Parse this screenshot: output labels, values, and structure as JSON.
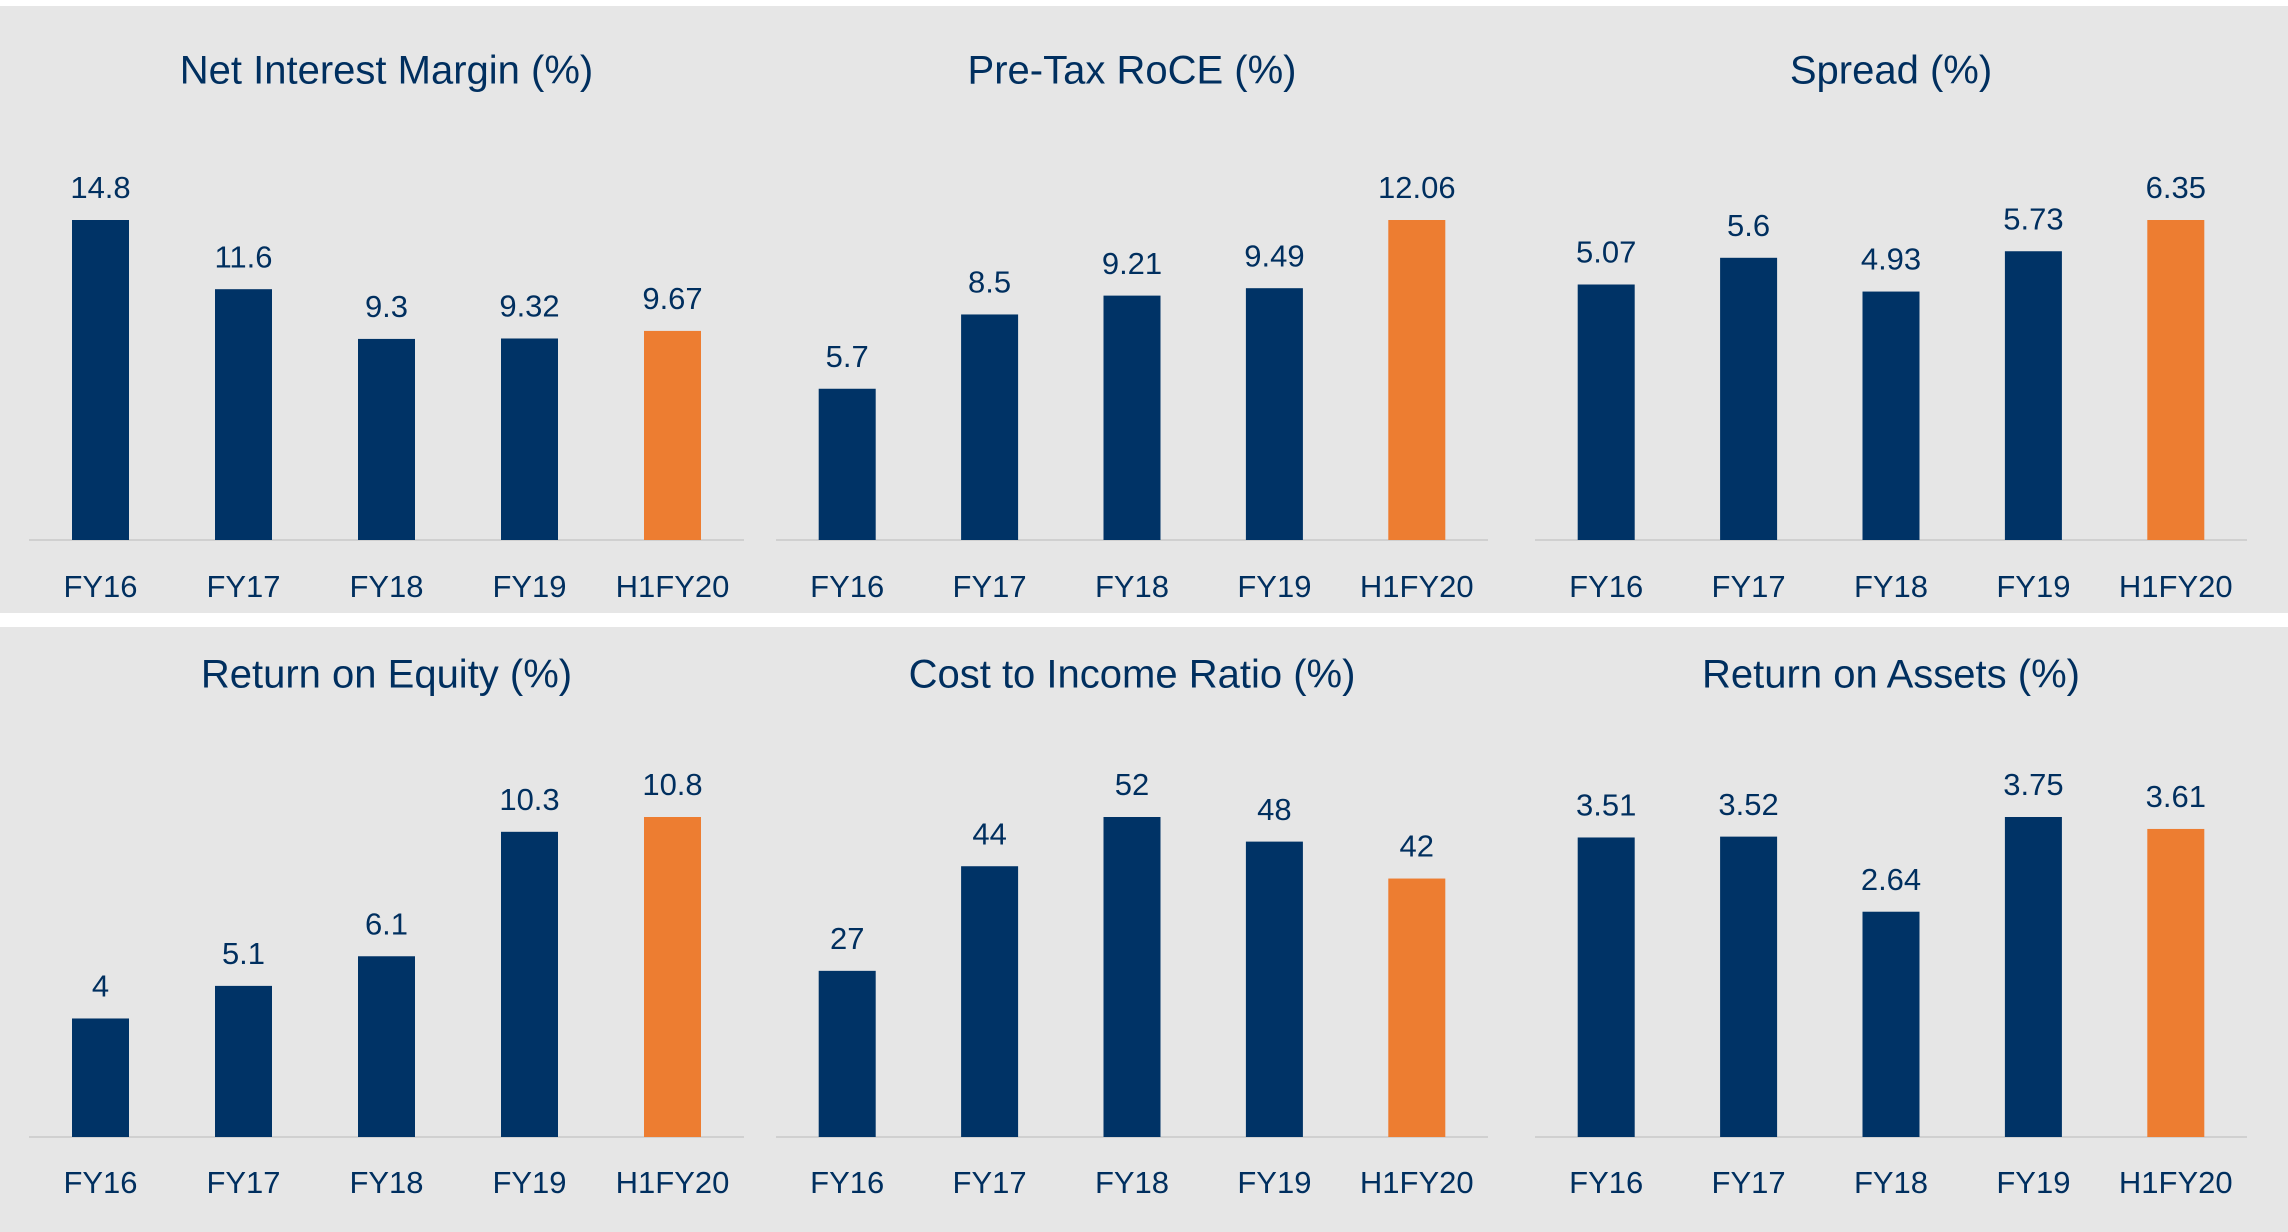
{
  "chart_data": [
    {
      "type": "bar",
      "title": "Net Interest Margin (%)",
      "categories": [
        "FY16",
        "FY17",
        "FY18",
        "FY19",
        "H1FY20"
      ],
      "values": [
        14.8,
        11.6,
        9.3,
        9.32,
        9.67
      ],
      "colors": [
        "#003366",
        "#003366",
        "#003366",
        "#003366",
        "#ed7d31"
      ]
    },
    {
      "type": "bar",
      "title": "Pre-Tax RoCE (%)",
      "categories": [
        "FY16",
        "FY17",
        "FY18",
        "FY19",
        "H1FY20"
      ],
      "values": [
        5.7,
        8.5,
        9.21,
        9.49,
        12.06
      ],
      "colors": [
        "#003366",
        "#003366",
        "#003366",
        "#003366",
        "#ed7d31"
      ]
    },
    {
      "type": "bar",
      "title": "Spread (%)",
      "categories": [
        "FY16",
        "FY17",
        "FY18",
        "FY19",
        "H1FY20"
      ],
      "values": [
        5.07,
        5.6,
        4.93,
        5.73,
        6.35
      ],
      "colors": [
        "#003366",
        "#003366",
        "#003366",
        "#003366",
        "#ed7d31"
      ]
    },
    {
      "type": "bar",
      "title": "Return on Equity (%)",
      "categories": [
        "FY16",
        "FY17",
        "FY18",
        "FY19",
        "H1FY20"
      ],
      "values": [
        4,
        5.1,
        6.1,
        10.3,
        10.8
      ],
      "colors": [
        "#003366",
        "#003366",
        "#003366",
        "#003366",
        "#ed7d31"
      ]
    },
    {
      "type": "bar",
      "title": "Cost to Income Ratio (%)",
      "categories": [
        "FY16",
        "FY17",
        "FY18",
        "FY19",
        "H1FY20"
      ],
      "values": [
        27,
        44,
        52,
        48,
        42
      ],
      "colors": [
        "#003366",
        "#003366",
        "#003366",
        "#003366",
        "#ed7d31"
      ]
    },
    {
      "type": "bar",
      "title": "Return on Assets (%)",
      "categories": [
        "FY16",
        "FY17",
        "FY18",
        "FY19",
        "H1FY20"
      ],
      "values": [
        3.51,
        3.52,
        2.64,
        3.75,
        3.61
      ],
      "colors": [
        "#003366",
        "#003366",
        "#003366",
        "#003366",
        "#ed7d31"
      ]
    }
  ]
}
